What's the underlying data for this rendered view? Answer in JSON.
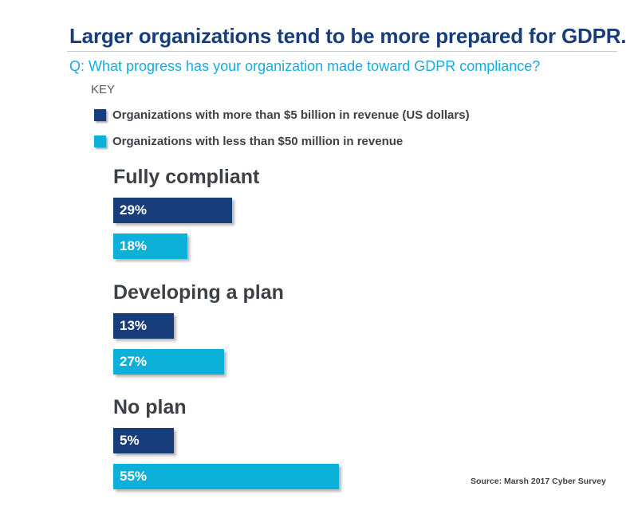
{
  "title": "Larger organizations tend to be more prepared for GDPR.",
  "subtitle": "Q: What progress has your organization made toward GDPR compliance?",
  "key_label": "KEY",
  "source": "Source: Marsh 2017 Cyber Survey",
  "colors": {
    "large_org": "#173d7a",
    "small_org": "#0db0d9",
    "title": "#173d7a",
    "question": "#15aede"
  },
  "chart_data": {
    "type": "bar",
    "orientation": "horizontal",
    "title": "Larger organizations tend to be more prepared for GDPR.",
    "categories": [
      "Fully compliant",
      "Developing a plan",
      "No plan"
    ],
    "series": [
      {
        "name": "Organizations with more than $5 billion in revenue (US dollars)",
        "values": [
          29,
          13,
          5
        ],
        "labels": [
          "29%",
          "13%",
          "5%"
        ]
      },
      {
        "name": "Organizations with less than $50 million in revenue",
        "values": [
          18,
          27,
          55
        ],
        "labels": [
          "18%",
          "27%",
          "55%"
        ]
      }
    ],
    "unit": "%",
    "xlim": [
      0,
      100
    ],
    "grid": false,
    "legend_position": "top-left"
  }
}
